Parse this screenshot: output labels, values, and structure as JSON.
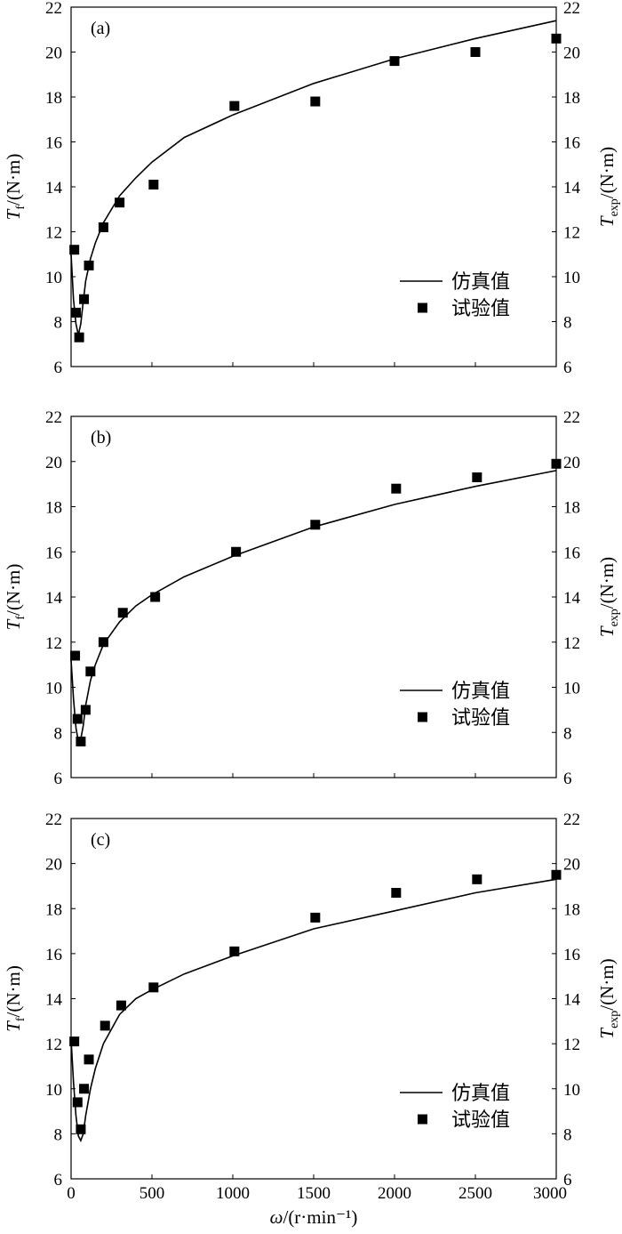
{
  "chart_data": [
    {
      "type": "line",
      "panel_label": "(a)",
      "left_ylabel": "T_f/(N·m)",
      "right_ylabel": "T_exp/(N·m)",
      "xlim": [
        0,
        3000
      ],
      "ylim": [
        6,
        22
      ],
      "xticks": [
        0,
        500,
        1000,
        1500,
        2000,
        2500,
        3000
      ],
      "yticks": [
        6,
        8,
        10,
        12,
        14,
        16,
        18,
        20,
        22
      ],
      "grid": false,
      "legend_position": "lower-right",
      "series": [
        {
          "name": "仿真值",
          "style": "line",
          "x": [
            0,
            15,
            30,
            45,
            60,
            75,
            90,
            120,
            150,
            200,
            300,
            400,
            500,
            700,
            1000,
            1500,
            2000,
            2500,
            3000
          ],
          "y": [
            11.0,
            9.0,
            7.9,
            7.4,
            7.9,
            8.9,
            9.8,
            10.8,
            11.5,
            12.4,
            13.6,
            14.4,
            15.1,
            16.2,
            17.2,
            18.6,
            19.7,
            20.6,
            21.4
          ]
        },
        {
          "name": "试验值",
          "style": "markers",
          "x": [
            20,
            30,
            50,
            80,
            110,
            200,
            300,
            510,
            1010,
            1510,
            2000,
            2500,
            3000
          ],
          "y": [
            11.2,
            8.4,
            7.3,
            9.0,
            10.5,
            12.2,
            13.3,
            14.1,
            17.6,
            17.8,
            19.6,
            20.0,
            20.6
          ]
        }
      ]
    },
    {
      "type": "line",
      "panel_label": "(b)",
      "left_ylabel": "T_f/(N·m)",
      "right_ylabel": "T_exp/(N·m)",
      "xlim": [
        0,
        3000
      ],
      "ylim": [
        6,
        22
      ],
      "xticks": [
        0,
        500,
        1000,
        1500,
        2000,
        2500,
        3000
      ],
      "yticks": [
        6,
        8,
        10,
        12,
        14,
        16,
        18,
        20,
        22
      ],
      "grid": false,
      "legend_position": "lower-right",
      "series": [
        {
          "name": "仿真值",
          "style": "line",
          "x": [
            0,
            15,
            30,
            45,
            60,
            75,
            90,
            120,
            150,
            200,
            300,
            400,
            500,
            700,
            1000,
            1500,
            2000,
            2500,
            3000
          ],
          "y": [
            11.2,
            9.5,
            8.2,
            7.6,
            7.7,
            8.3,
            9.2,
            10.3,
            11.0,
            11.9,
            12.9,
            13.6,
            14.1,
            14.9,
            15.8,
            17.1,
            18.1,
            18.9,
            19.6
          ]
        },
        {
          "name": "试验值",
          "style": "markers",
          "x": [
            25,
            40,
            60,
            90,
            120,
            200,
            320,
            520,
            1020,
            1510,
            2010,
            2510,
            3000
          ],
          "y": [
            11.4,
            8.6,
            7.6,
            9.0,
            10.7,
            12.0,
            13.3,
            14.0,
            16.0,
            17.2,
            18.8,
            19.3,
            19.9
          ]
        }
      ]
    },
    {
      "type": "line",
      "panel_label": "(c)",
      "left_ylabel": "T_f/(N·m)",
      "right_ylabel": "T_exp/(N·m)",
      "xlabel": "ω/(r·min⁻¹)",
      "xlim": [
        0,
        3000
      ],
      "ylim": [
        6,
        22
      ],
      "xticks": [
        0,
        500,
        1000,
        1500,
        2000,
        2500,
        3000
      ],
      "yticks": [
        6,
        8,
        10,
        12,
        14,
        16,
        18,
        20,
        22
      ],
      "grid": false,
      "legend_position": "lower-right",
      "series": [
        {
          "name": "仿真值",
          "style": "line",
          "x": [
            0,
            15,
            30,
            45,
            60,
            75,
            90,
            120,
            150,
            200,
            300,
            400,
            500,
            700,
            1000,
            1500,
            2000,
            2500,
            3000
          ],
          "y": [
            12.2,
            10.3,
            8.8,
            7.9,
            7.7,
            8.0,
            8.8,
            10.0,
            10.9,
            12.0,
            13.3,
            14.0,
            14.4,
            15.1,
            15.9,
            17.1,
            17.9,
            18.7,
            19.3
          ]
        },
        {
          "name": "试验值",
          "style": "markers",
          "x": [
            20,
            40,
            60,
            80,
            110,
            210,
            310,
            510,
            1010,
            1510,
            2010,
            2510,
            3000
          ],
          "y": [
            12.1,
            9.4,
            8.2,
            10.0,
            11.3,
            12.8,
            13.7,
            14.5,
            16.1,
            17.6,
            18.7,
            19.3,
            19.5
          ]
        }
      ]
    }
  ]
}
